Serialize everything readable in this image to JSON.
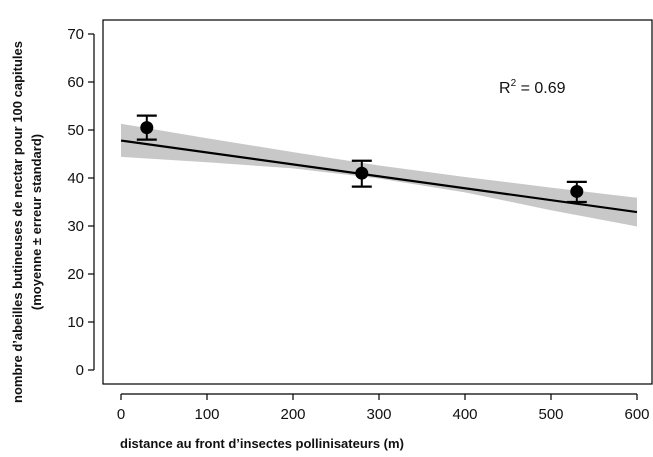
{
  "chart_data": {
    "type": "scatter",
    "xlabel": "distance au front d’insectes pollinisateurs (m)",
    "ylabel_line1": "nombre d’abeilles butineuses de nectar pour 100 capitules",
    "ylabel_line2": "(moyenne ± erreur standard)",
    "xlim": [
      0,
      600
    ],
    "ylim": [
      0,
      70
    ],
    "x_ticks": [
      0,
      100,
      200,
      300,
      400,
      500,
      600
    ],
    "y_ticks": [
      0,
      10,
      20,
      30,
      40,
      50,
      60,
      70
    ],
    "grid": false,
    "points": [
      {
        "x": 30,
        "y": 50.5,
        "se_low": 48.0,
        "se_high": 53.0
      },
      {
        "x": 280,
        "y": 41.0,
        "se_low": 38.2,
        "se_high": 43.6
      },
      {
        "x": 530,
        "y": 37.2,
        "se_low": 35.0,
        "se_high": 39.2
      }
    ],
    "fit_line": {
      "x": [
        0,
        600
      ],
      "y": [
        47.8,
        32.9
      ]
    },
    "confidence_band": {
      "x": [
        0,
        100,
        200,
        300,
        400,
        500,
        600
      ],
      "upper": [
        51.3,
        48.3,
        45.4,
        42.6,
        40.2,
        38.0,
        35.9
      ],
      "lower": [
        44.4,
        43.3,
        42.0,
        39.9,
        37.0,
        33.3,
        29.9
      ]
    },
    "annotation": {
      "base": "R",
      "sup": "2",
      "rest": " = 0.69"
    },
    "colors": {
      "band": "#c8c8c8",
      "line": "#000000",
      "points": "#000000",
      "axis": "#000000"
    }
  }
}
